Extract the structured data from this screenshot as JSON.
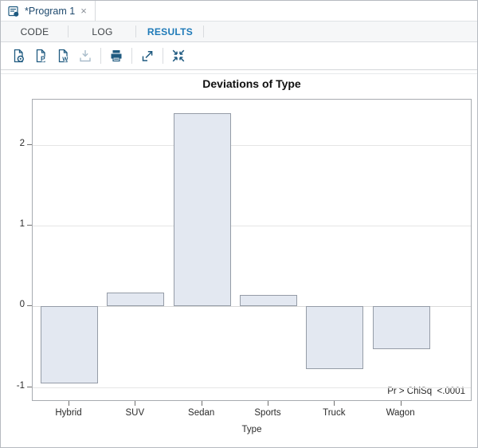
{
  "window": {
    "tab_title": "*Program 1",
    "close_glyph": "×"
  },
  "tabs": [
    {
      "label": "CODE",
      "active": false
    },
    {
      "label": "LOG",
      "active": false
    },
    {
      "label": "RESULTS",
      "active": true
    }
  ],
  "toolbar": {
    "icons": [
      "download-html-icon",
      "download-pdf-icon",
      "download-rtf-icon",
      "download-icon",
      "print-icon",
      "open-new-window-icon",
      "exit-maximize-icon"
    ]
  },
  "colors": {
    "accent_blue": "#1e7ab8",
    "icon_navy": "#1f5a80",
    "icon_disabled": "#a9bcca",
    "bar_fill": "#e3e8f1",
    "bar_border": "#959ca7",
    "plot_border": "#a7abb0",
    "gridline": "#e5e5e5"
  },
  "chart_data": {
    "type": "bar",
    "title": "Deviations of Type",
    "xlabel": "Type",
    "ylabel": "",
    "categories": [
      "Hybrid",
      "SUV",
      "Sedan",
      "Sports",
      "Truck",
      "Wagon"
    ],
    "values": [
      -0.95,
      0.17,
      2.39,
      0.14,
      -0.78,
      -0.53
    ],
    "yticks": [
      -1,
      0,
      1,
      2
    ],
    "ylim": [
      -1.18,
      2.56
    ],
    "grid": true,
    "legend": "none",
    "annotation": "Pr > ChiSq  <.0001"
  }
}
